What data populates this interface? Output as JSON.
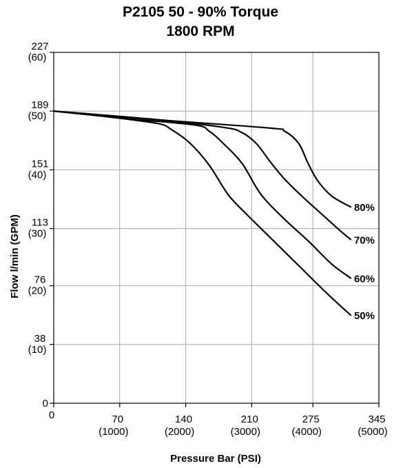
{
  "chart_data": {
    "type": "line",
    "title": "P2105 50 - 90% Torque",
    "subtitle": "1800 RPM",
    "xlabel": "Pressure Bar (PSI)",
    "ylabel": "Flow l/min (GPM)",
    "xlim": [
      0,
      345
    ],
    "ylim": [
      0,
      227
    ],
    "grid": true,
    "x_ticks": [
      {
        "value": 0,
        "label": "0",
        "sublabel": ""
      },
      {
        "value": 70,
        "label": "70",
        "sublabel": "(1000)"
      },
      {
        "value": 140,
        "label": "140",
        "sublabel": "(2000)"
      },
      {
        "value": 210,
        "label": "210",
        "sublabel": "(3000)"
      },
      {
        "value": 275,
        "label": "275",
        "sublabel": "(4000)"
      },
      {
        "value": 345,
        "label": "345",
        "sublabel": "(5000)"
      }
    ],
    "y_ticks": [
      {
        "value": 0,
        "label": "0",
        "sublabel": ""
      },
      {
        "value": 38,
        "label": "38",
        "sublabel": "(10)"
      },
      {
        "value": 76,
        "label": "76",
        "sublabel": "(20)"
      },
      {
        "value": 113,
        "label": "113",
        "sublabel": "(30)"
      },
      {
        "value": 151,
        "label": "151",
        "sublabel": "(40)"
      },
      {
        "value": 189,
        "label": "189",
        "sublabel": "(50)"
      },
      {
        "value": 227,
        "label": "227",
        "sublabel": "(60)"
      }
    ],
    "series": [
      {
        "name": "50%",
        "x": [
          0,
          55,
          110,
          125,
          145,
          165,
          185,
          205,
          230,
          260,
          290,
          315
        ],
        "y": [
          189,
          185.5,
          181,
          177,
          168,
          154,
          135,
          122,
          107,
          89,
          71,
          57
        ]
      },
      {
        "name": "60%",
        "x": [
          0,
          80,
          150,
          165,
          180,
          200,
          220,
          245,
          270,
          295,
          315
        ],
        "y": [
          189,
          184,
          180,
          176,
          168,
          155,
          135,
          119,
          105,
          90,
          81
        ]
      },
      {
        "name": "70%",
        "x": [
          0,
          100,
          180,
          200,
          215,
          230,
          245,
          265,
          285,
          305,
          315
        ],
        "y": [
          189,
          184,
          178.5,
          175,
          168,
          156,
          145,
          133,
          122,
          111,
          106
        ]
      },
      {
        "name": "80%",
        "x": [
          0,
          120,
          230,
          245,
          260,
          270,
          280,
          295,
          315
        ],
        "y": [
          189,
          183,
          178,
          176,
          168,
          155,
          144,
          134,
          127
        ]
      }
    ]
  }
}
